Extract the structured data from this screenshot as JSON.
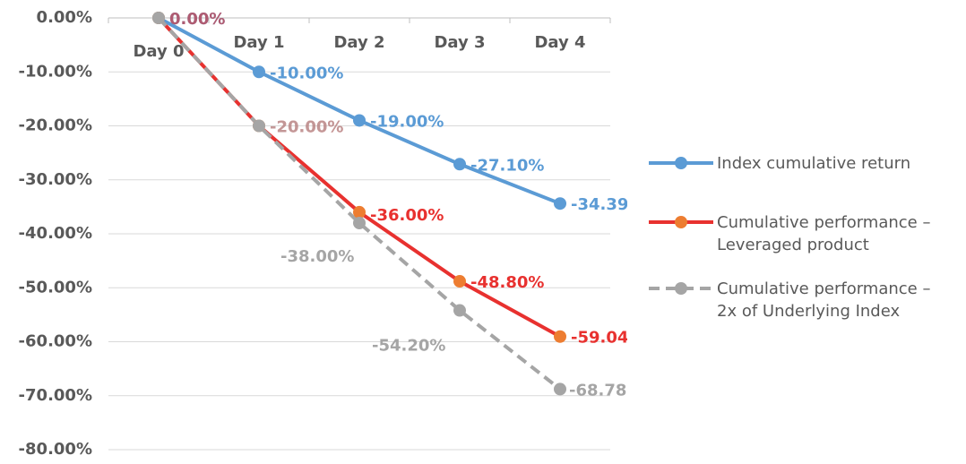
{
  "chart_data": {
    "type": "line",
    "categories": [
      "Day 0",
      "Day 1",
      "Day 2",
      "Day 3",
      "Day 4"
    ],
    "series": [
      {
        "name": "Index cumulative return",
        "color": "#5b9bd5",
        "marker_color": "#5b9bd5",
        "dashed": false,
        "values": [
          0,
          -10,
          -19,
          -27.1,
          -34.39
        ],
        "value_labels": [
          "0.00%",
          "-10.00%",
          "-19.00%",
          "-27.10%",
          "-34.39%"
        ]
      },
      {
        "name": "Cumulative performance – Leveraged product",
        "color": "#e8312f",
        "marker_color": "#ed7d31",
        "dashed": false,
        "values": [
          0,
          -20,
          -36,
          -48.8,
          -59.04
        ],
        "value_labels": [
          "0.00%",
          "-20.00%",
          "-36.00%",
          "-48.80%",
          "-59.04%"
        ]
      },
      {
        "name": "Cumulative performance – 2x of Underlying Index",
        "color": "#a5a5a5",
        "marker_color": "#a5a5a5",
        "dashed": true,
        "values": [
          0,
          -20,
          -38,
          -54.2,
          -68.78
        ],
        "value_labels": [
          null,
          "-20.00%",
          "-38.00%",
          "-54.20%",
          "-68.78%"
        ]
      }
    ],
    "ylim": [
      -80,
      0
    ],
    "yticks": [
      {
        "value": 0,
        "label": "0.00%"
      },
      {
        "value": -10,
        "label": "-10.00%"
      },
      {
        "value": -20,
        "label": "-20.00%"
      },
      {
        "value": -30,
        "label": "-30.00%"
      },
      {
        "value": -40,
        "label": "-40.00%"
      },
      {
        "value": -50,
        "label": "-50.00%"
      },
      {
        "value": -60,
        "label": "-60.00%"
      },
      {
        "value": -70,
        "label": "-70.00%"
      },
      {
        "value": -80,
        "label": "-80.00%"
      }
    ],
    "grid": true,
    "legend": "right"
  }
}
